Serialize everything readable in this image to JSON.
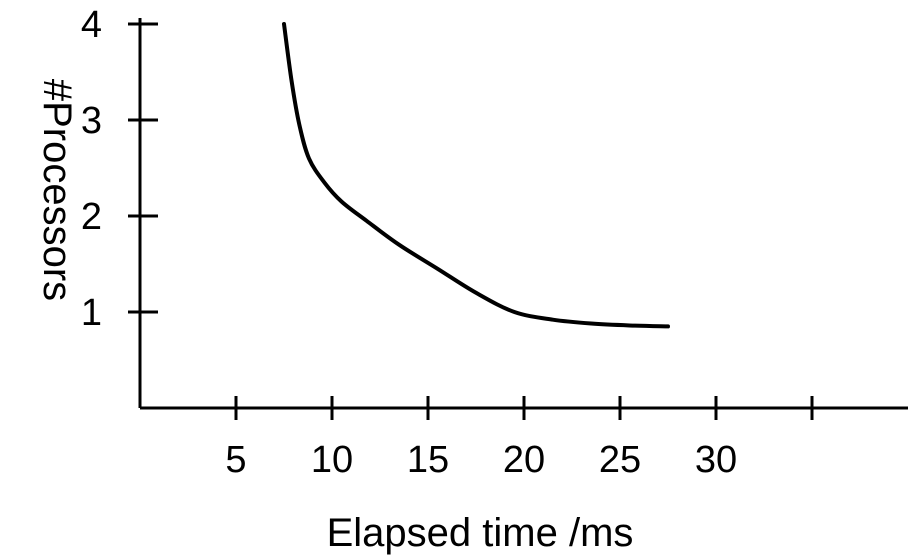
{
  "chart_data": {
    "type": "line",
    "title": "",
    "xlabel": "Elapsed time /ms",
    "ylabel": "#Processors",
    "xlim": [
      0,
      40
    ],
    "ylim": [
      0,
      4
    ],
    "x_ticks": [
      5,
      10,
      15,
      20,
      25,
      30,
      35
    ],
    "x_tick_labels": [
      "5",
      "10",
      "15",
      "20",
      "25",
      "30",
      ""
    ],
    "y_ticks": [
      1,
      2,
      3,
      4
    ],
    "y_tick_labels": [
      "1",
      "2",
      "3",
      "4"
    ],
    "grid": false,
    "series": [
      {
        "x": [
          7.5,
          7.9,
          8.3,
          8.8,
          9.6,
          10.5,
          11.8,
          13.5,
          15.5,
          17.5,
          19.5,
          21.5,
          23.5,
          25.5,
          27.5
        ],
        "y": [
          4.0,
          3.4,
          2.95,
          2.6,
          2.35,
          2.15,
          1.95,
          1.7,
          1.45,
          1.2,
          1.0,
          0.92,
          0.88,
          0.86,
          0.85
        ],
        "color": "#000000"
      }
    ]
  }
}
